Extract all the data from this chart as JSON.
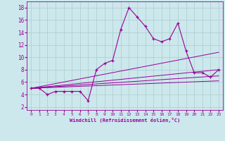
{
  "xlabel": "Windchill (Refroidissement éolien,°C)",
  "background_color": "#cce8ec",
  "line_color": "#990099",
  "xlim": [
    -0.5,
    23.5
  ],
  "ylim": [
    1.5,
    19
  ],
  "yticks": [
    2,
    4,
    6,
    8,
    10,
    12,
    14,
    16,
    18
  ],
  "xticks": [
    0,
    1,
    2,
    3,
    4,
    5,
    6,
    7,
    8,
    9,
    10,
    11,
    12,
    13,
    14,
    15,
    16,
    17,
    18,
    19,
    20,
    21,
    22,
    23
  ],
  "grid_color": "#aacccc",
  "main_series": {
    "x": [
      0,
      1,
      2,
      3,
      4,
      5,
      6,
      7,
      8,
      9,
      10,
      11,
      12,
      13,
      14,
      15,
      16,
      17,
      18,
      19,
      20,
      21,
      22,
      23
    ],
    "y": [
      5.0,
      5.0,
      4.0,
      4.5,
      4.5,
      4.5,
      4.5,
      3.0,
      8.0,
      9.0,
      9.5,
      14.5,
      18.0,
      16.5,
      15.0,
      13.0,
      12.5,
      13.0,
      15.5,
      11.0,
      7.5,
      7.5,
      6.8,
      8.0
    ]
  },
  "trend_lines": [
    {
      "x": [
        0,
        23
      ],
      "y": [
        5.0,
        10.8
      ]
    },
    {
      "x": [
        0,
        23
      ],
      "y": [
        5.0,
        8.0
      ]
    },
    {
      "x": [
        0,
        23
      ],
      "y": [
        5.0,
        7.0
      ]
    },
    {
      "x": [
        0,
        23
      ],
      "y": [
        5.0,
        6.2
      ]
    }
  ]
}
